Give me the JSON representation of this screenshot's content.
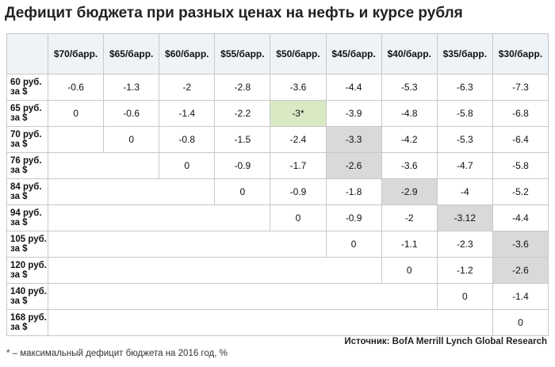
{
  "title": "Дефицит бюджета при разных ценах на нефть и курсе рубля",
  "table": {
    "columns": [
      "$70/барр.",
      "$65/барр.",
      "$60/барр.",
      "$55/барр.",
      "$50/барр.",
      "$45/барр.",
      "$40/барр.",
      "$35/барр.",
      "$30/барр."
    ],
    "rows": [
      {
        "label": "60 руб. за $",
        "cells": [
          -0.6,
          -1.3,
          -2,
          -2.8,
          -3.6,
          -4.4,
          -5.3,
          -6.3,
          -7.3
        ]
      },
      {
        "label": "65 руб. за $",
        "cells": [
          0,
          -0.6,
          -1.4,
          -2.2,
          "-3*",
          -3.9,
          -4.8,
          -5.8,
          -6.8
        ]
      },
      {
        "label": "70 руб. за $",
        "cells": [
          0,
          -0.8,
          -1.5,
          -2.4,
          -3.3,
          -4.2,
          -5.3,
          -6.4
        ]
      },
      {
        "label": "76 руб. за $",
        "cells": [
          0,
          -0.9,
          -1.7,
          -2.6,
          -3.6,
          -4.7,
          -5.8
        ]
      },
      {
        "label": "84 руб. за $",
        "cells": [
          0,
          -0.9,
          -1.8,
          -2.9,
          -4,
          -5.2
        ]
      },
      {
        "label": "94 руб. за $",
        "cells": [
          0,
          -0.9,
          -2,
          -3.12,
          -4.4
        ]
      },
      {
        "label": "105 руб. за $",
        "cells": [
          0,
          -1.1,
          -2.3,
          -3.6
        ]
      },
      {
        "label": "120 руб. за $",
        "cells": [
          0,
          -1.2,
          -2.6
        ]
      },
      {
        "label": "140 руб. за $",
        "cells": [
          0,
          -1.4
        ]
      },
      {
        "label": "168 руб. за $",
        "cells": [
          0
        ]
      }
    ]
  },
  "footnote": "* – максимальный дефицит бюджета на 2016 год, %",
  "source": "Источник: BofA Merrill Lynch Global Research"
}
